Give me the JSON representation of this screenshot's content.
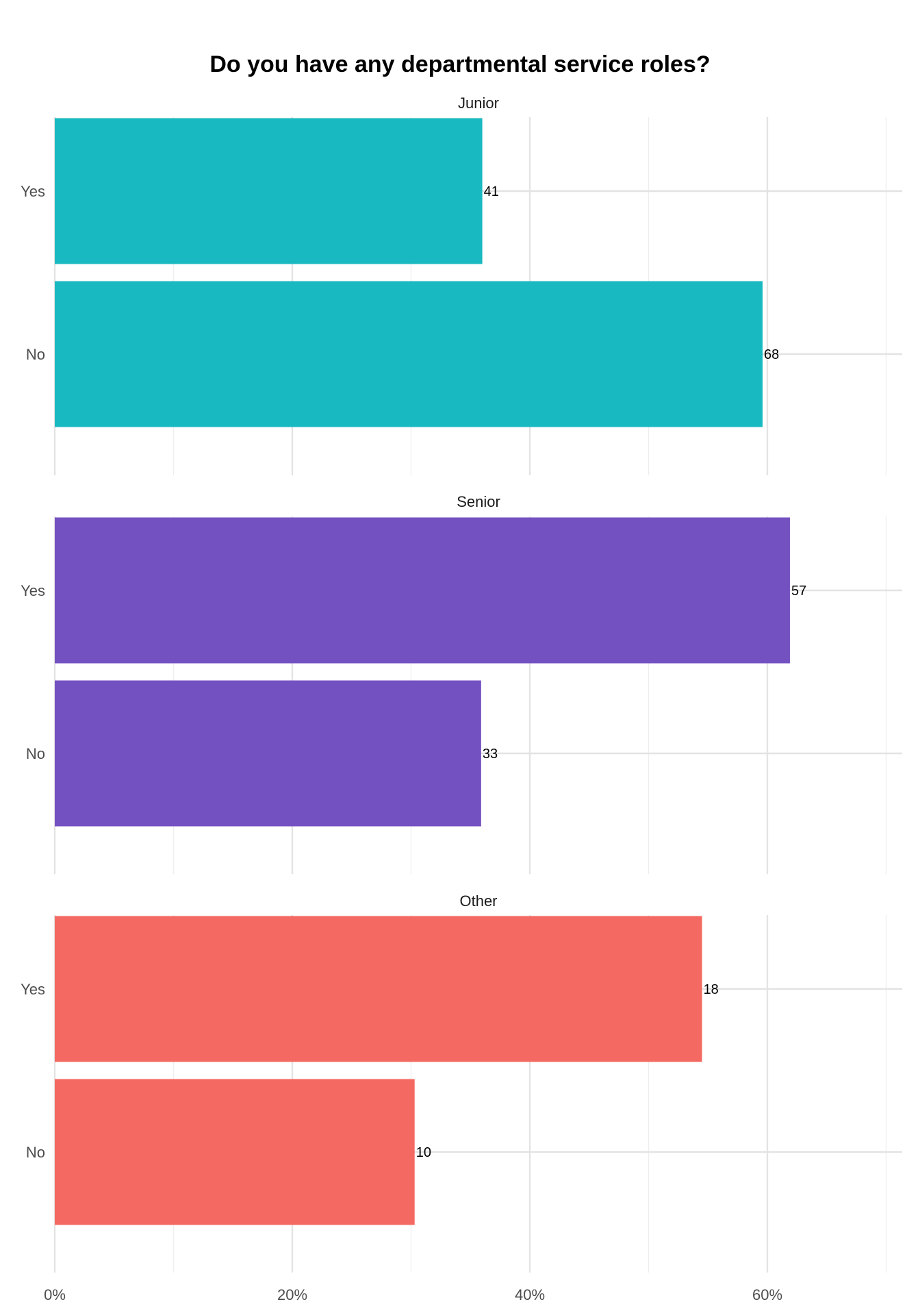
{
  "chart_data": {
    "type": "bar",
    "orientation": "horizontal",
    "title": "Do you have any departmental service roles?",
    "xlabel": "",
    "ylabel": "",
    "xlim": [
      0,
      0.71
    ],
    "x_ticks": [
      0,
      0.2,
      0.4,
      0.6
    ],
    "x_tick_labels": [
      "0%",
      "20%",
      "40%",
      "60%"
    ],
    "grid": true,
    "legend": "none",
    "categories": [
      "Yes",
      "No"
    ],
    "panels": [
      {
        "name": "Junior",
        "color": "#19b9c1",
        "values": [
          0.36,
          0.596
        ],
        "labels": [
          "41",
          "68"
        ]
      },
      {
        "name": "Senior",
        "color": "#7451c1",
        "values": [
          0.619,
          0.359
        ],
        "labels": [
          "57",
          "33"
        ]
      },
      {
        "name": "Other",
        "color": "#f46961",
        "values": [
          0.545,
          0.303
        ],
        "labels": [
          "18",
          "10"
        ]
      }
    ]
  }
}
